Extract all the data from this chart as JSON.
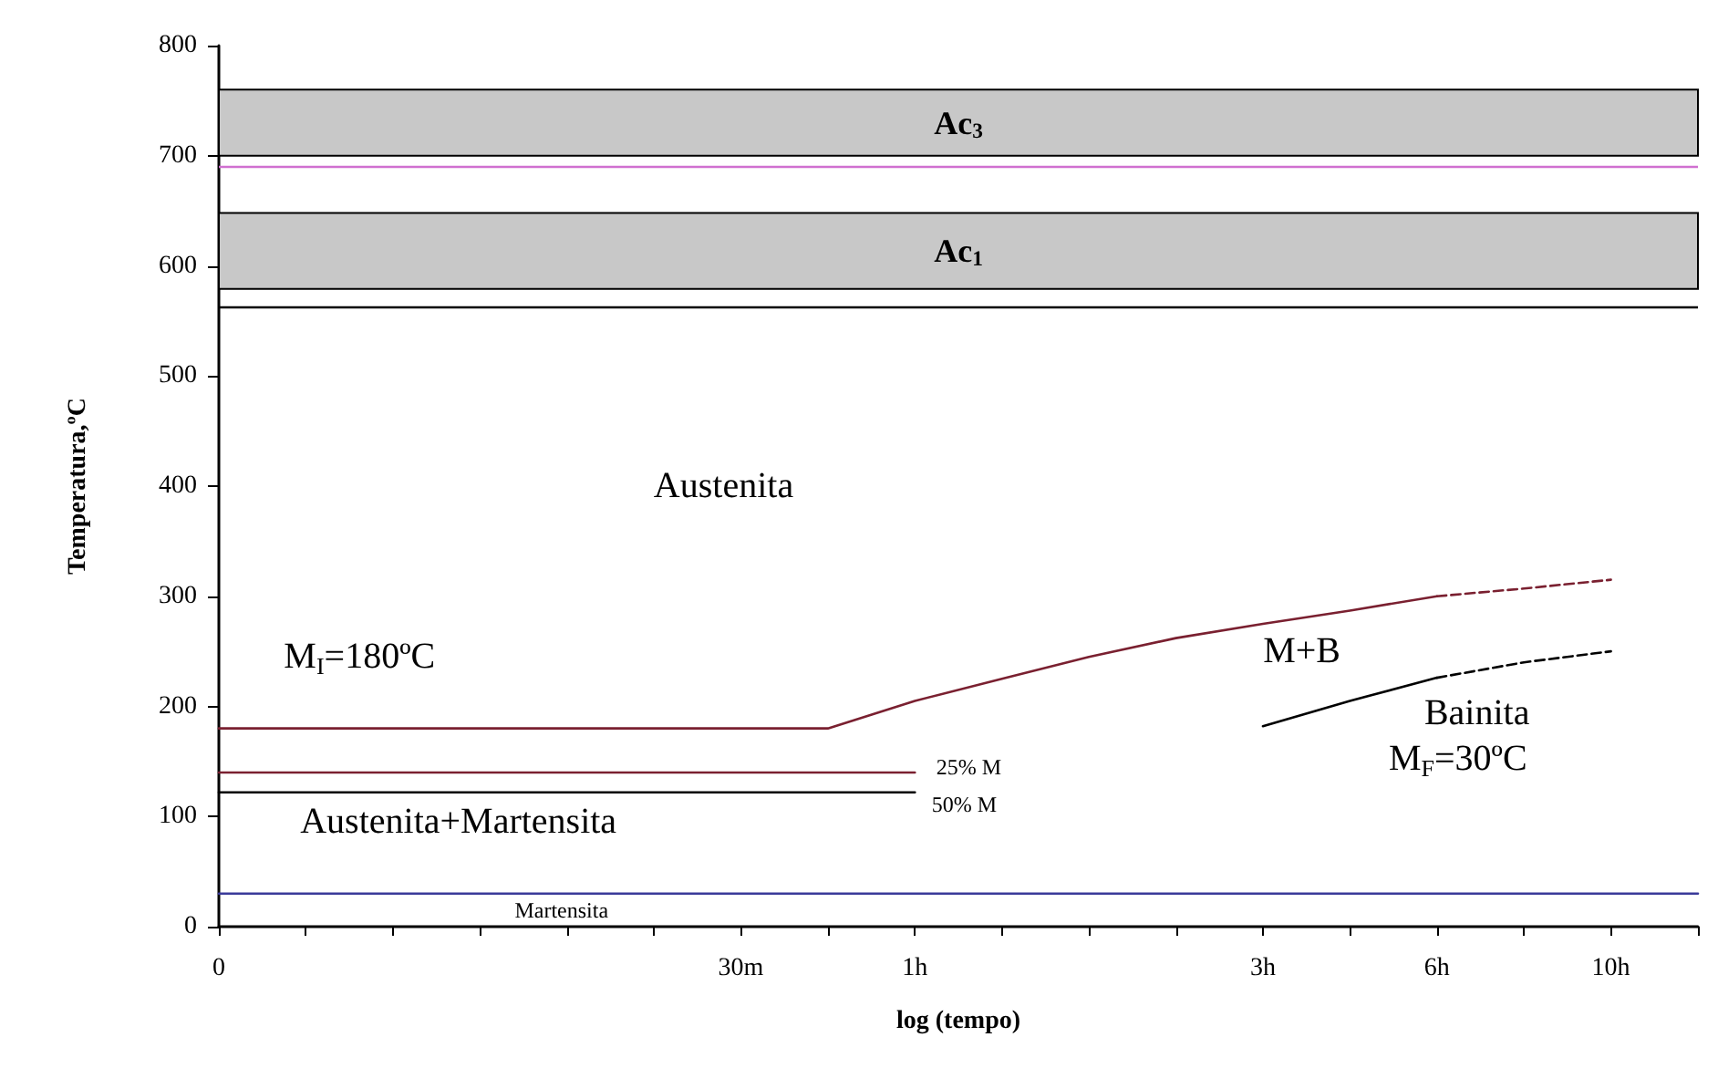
{
  "chart_data": {
    "type": "line",
    "xlabel": "log (tempo)",
    "ylabel": "Temperatura,ºC",
    "categories": [
      "0",
      null,
      null,
      null,
      null,
      null,
      "30m",
      null,
      "1h",
      null,
      null,
      null,
      "3h",
      null,
      "6h",
      null,
      "10h",
      null
    ],
    "ylim": [
      0,
      800
    ],
    "yticks": [
      0,
      100,
      200,
      300,
      400,
      500,
      600,
      700,
      800
    ],
    "grid": false,
    "marker": "none",
    "series": [
      {
        "color": "#7a2030",
        "values": [
          180,
          180,
          180,
          180,
          180,
          180,
          180,
          180,
          205,
          225,
          245,
          262,
          275,
          287,
          300,
          null,
          null,
          null
        ]
      },
      {
        "color": "#7a2030",
        "line_style": "dashed",
        "values": [
          null,
          null,
          null,
          null,
          null,
          null,
          null,
          null,
          null,
          null,
          null,
          null,
          null,
          null,
          300,
          307,
          315,
          null
        ]
      },
      {
        "color": "#000000",
        "values": [
          null,
          null,
          null,
          null,
          null,
          null,
          null,
          null,
          null,
          null,
          null,
          null,
          182,
          205,
          226,
          null,
          null,
          null
        ]
      },
      {
        "color": "#000000",
        "line_style": "dashed",
        "values": [
          null,
          null,
          null,
          null,
          null,
          null,
          null,
          null,
          null,
          null,
          null,
          null,
          null,
          null,
          226,
          240,
          250,
          null
        ]
      },
      {
        "color": "#7a2030",
        "values": [
          140,
          140,
          140,
          140,
          140,
          140,
          140,
          140,
          140,
          null,
          null,
          null,
          null,
          null,
          null,
          null,
          null,
          null
        ]
      },
      {
        "color": "#000000",
        "values": [
          122,
          122,
          122,
          122,
          122,
          122,
          122,
          122,
          122,
          null,
          null,
          null,
          null,
          null,
          null,
          null,
          null,
          null
        ]
      },
      {
        "color": "#3a3a9a",
        "values": [
          30,
          30,
          30,
          30,
          30,
          30,
          30,
          30,
          30,
          30,
          30,
          30,
          30,
          30,
          30,
          30,
          30,
          30
        ]
      }
    ],
    "bands": [
      {
        "axis": "y",
        "from": 700,
        "to": 760,
        "label": "Ac$_{3}$",
        "color": "#c8c8c8"
      },
      {
        "axis": "y",
        "from": 579,
        "to": 648,
        "label": "Ac$_{1}$",
        "color": "#c8c8c8"
      }
    ],
    "ref_lines": [
      {
        "axis": "y",
        "value": 691,
        "color": "#d070d0"
      },
      {
        "axis": "y",
        "value": 563,
        "color": "#000000"
      }
    ],
    "annotations": [
      "Austenita",
      "M$_{I}$=180ºC",
      "M+B",
      "Bainita",
      "M$_{F}$=30ºC",
      "Austenita+Martensita",
      "25% M",
      "50% M",
      "Martensita"
    ]
  }
}
